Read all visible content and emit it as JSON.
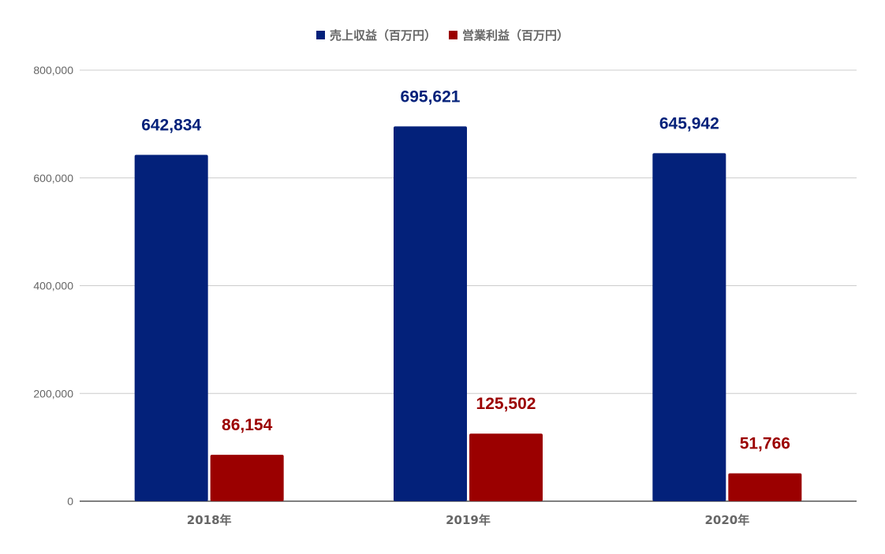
{
  "chart_data": {
    "type": "bar",
    "categories": [
      "2018年",
      "2019年",
      "2020年"
    ],
    "series": [
      {
        "name": "売上収益（百万円）",
        "values": [
          642834,
          695621,
          645942
        ],
        "color": "#03217a",
        "labels": [
          "642,834",
          "695,621",
          "645,942"
        ]
      },
      {
        "name": "営業利益（百万円）",
        "values": [
          86154,
          125502,
          51766
        ],
        "color": "#9b0000",
        "labels": [
          "86,154",
          "125,502",
          "51,766"
        ]
      }
    ],
    "title": "",
    "xlabel": "",
    "ylabel": "",
    "ylim": [
      0,
      800000
    ],
    "yticks": [
      0,
      200000,
      400000,
      600000,
      800000
    ],
    "ytick_labels": [
      "0",
      "200,000",
      "400,000",
      "600,000",
      "800,000"
    ],
    "grid": true,
    "legend_position": "top-center",
    "colors": {
      "grid": "#cccccc",
      "axis": "#333333",
      "tick_text": "#666666",
      "category_text": "#666666"
    }
  }
}
